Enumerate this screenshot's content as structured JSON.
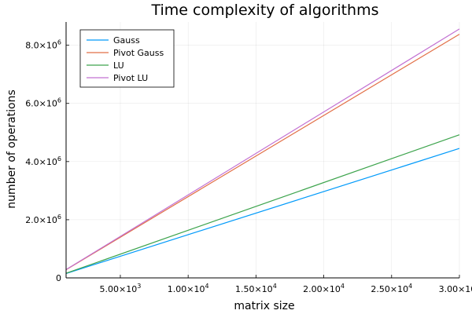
{
  "chart_data": {
    "type": "line",
    "title": "Time complexity of algorithms",
    "xlabel": "matrix size",
    "ylabel": "number of operations",
    "xlim": [
      1000,
      30000
    ],
    "ylim": [
      0,
      8800000
    ],
    "grid": true,
    "legend_position": "top-left",
    "x_ticks": [
      {
        "value": 5000,
        "mantissa": "5.00×10",
        "exp": "3"
      },
      {
        "value": 10000,
        "mantissa": "1.00×10",
        "exp": "4"
      },
      {
        "value": 15000,
        "mantissa": "1.50×10",
        "exp": "4"
      },
      {
        "value": 20000,
        "mantissa": "2.00×10",
        "exp": "4"
      },
      {
        "value": 25000,
        "mantissa": "2.50×10",
        "exp": "4"
      },
      {
        "value": 30000,
        "mantissa": "3.00×10",
        "exp": "4"
      }
    ],
    "y_ticks": [
      {
        "value": 0,
        "mantissa": "0",
        "exp": ""
      },
      {
        "value": 2000000,
        "mantissa": "2.0×10",
        "exp": "6"
      },
      {
        "value": 4000000,
        "mantissa": "4.0×10",
        "exp": "6"
      },
      {
        "value": 6000000,
        "mantissa": "6.0×10",
        "exp": "6"
      },
      {
        "value": 8000000,
        "mantissa": "8.0×10",
        "exp": "6"
      }
    ],
    "series": [
      {
        "name": "Gauss",
        "color": "#009AFA",
        "x": [
          1000,
          30000
        ],
        "y": [
          150000,
          4450000
        ]
      },
      {
        "name": "Pivot Gauss",
        "color": "#E26F46",
        "x": [
          1000,
          30000
        ],
        "y": [
          280000,
          8380000
        ]
      },
      {
        "name": "LU",
        "color": "#3DA44D",
        "x": [
          1000,
          30000
        ],
        "y": [
          160000,
          4920000
        ]
      },
      {
        "name": "Pivot LU",
        "color": "#C271D2",
        "x": [
          1000,
          30000
        ],
        "y": [
          285000,
          8560000
        ]
      }
    ]
  }
}
